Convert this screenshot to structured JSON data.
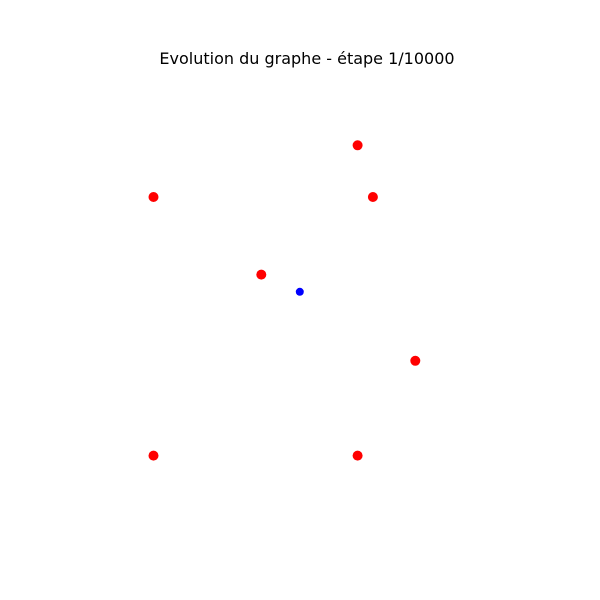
{
  "chart_data": {
    "type": "scatter",
    "title": "Evolution du graphe - étape 1/10000",
    "axes_visible": false,
    "grid": false,
    "xlim": [
      0,
      10
    ],
    "ylim": [
      0,
      10
    ],
    "series": [
      {
        "color": "#ff0000",
        "marker": "circle",
        "points": [
          {
            "x": 1.0,
            "y": 7.1
          },
          {
            "x": 3.8,
            "y": 5.3
          },
          {
            "x": 6.3,
            "y": 8.3
          },
          {
            "x": 6.7,
            "y": 7.1
          },
          {
            "x": 7.8,
            "y": 3.3
          },
          {
            "x": 1.0,
            "y": 1.1
          },
          {
            "x": 6.3,
            "y": 1.1
          }
        ]
      },
      {
        "color": "#0000ff",
        "marker": "circle",
        "points": [
          {
            "x": 4.8,
            "y": 4.9
          }
        ]
      }
    ]
  }
}
